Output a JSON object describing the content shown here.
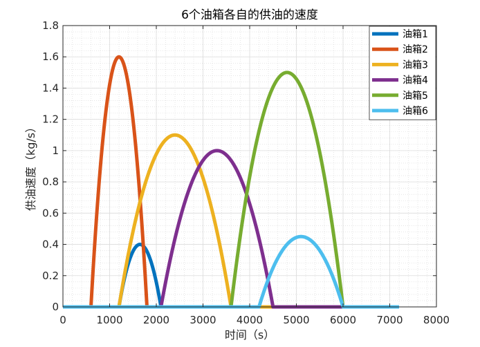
{
  "chart_data": {
    "type": "line",
    "title": "6个油箱各自的供油的速度",
    "xlabel": "时间（s）",
    "ylabel": "供油速度（kg/s）",
    "xlim": [
      0,
      8000
    ],
    "ylim": [
      0,
      1.8
    ],
    "xticks": [
      0,
      1000,
      2000,
      3000,
      4000,
      5000,
      6000,
      7000,
      8000
    ],
    "yticks": [
      0,
      0.2,
      0.4,
      0.6,
      0.8,
      1,
      1.2,
      1.4,
      1.6,
      1.8
    ],
    "xtick_labels": [
      "0",
      "1000",
      "2000",
      "3000",
      "4000",
      "5000",
      "6000",
      "7000",
      "8000"
    ],
    "ytick_labels": [
      "0",
      "0.2",
      "0.4",
      "0.6",
      "0.8",
      "1",
      "1.2",
      "1.4",
      "1.6",
      "1.8"
    ],
    "grid": true,
    "minor_grid": true,
    "legend_position": "top-right",
    "x_max_data": 7200,
    "series": [
      {
        "name": "油箱1",
        "color": "#0072BD",
        "start": 1200,
        "peak_x": 1650,
        "peak_y": 0.4,
        "end": 2100
      },
      {
        "name": "油箱2",
        "color": "#D95319",
        "start": 600,
        "peak_x": 1200,
        "peak_y": 1.6,
        "end": 1800
      },
      {
        "name": "油箱3",
        "color": "#EDB120",
        "start": 1200,
        "peak_x": 2400,
        "peak_y": 1.1,
        "end": 3600
      },
      {
        "name": "油箱4",
        "color": "#7E2F8E",
        "start": 2100,
        "peak_x": 3300,
        "peak_y": 1.0,
        "end": 4500
      },
      {
        "name": "油箱5",
        "color": "#77AC30",
        "start": 3600,
        "peak_x": 4800,
        "peak_y": 1.5,
        "end": 6000
      },
      {
        "name": "油箱6",
        "color": "#4DBEEE",
        "start": 4200,
        "peak_x": 5100,
        "peak_y": 0.45,
        "end": 6000
      }
    ]
  }
}
